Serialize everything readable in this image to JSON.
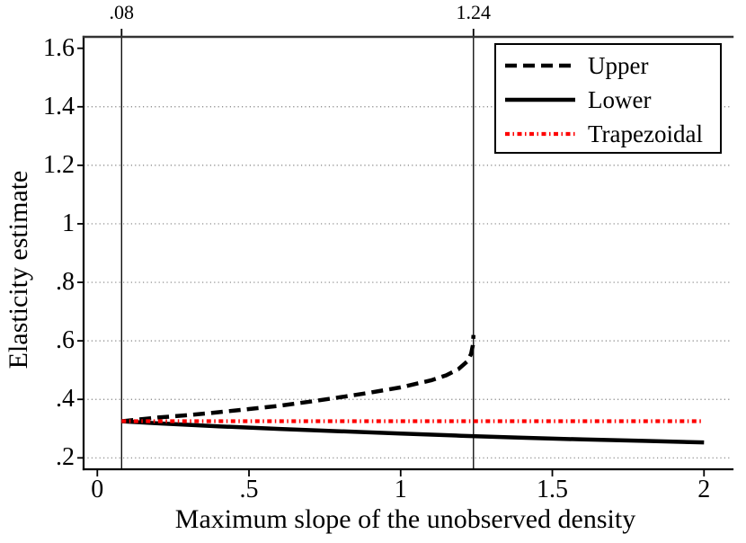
{
  "chart_data": {
    "type": "line",
    "title": "",
    "xlabel": "Maximum slope of the unobserved density",
    "ylabel": "Elasticity estimate",
    "xlim": [
      -0.0453,
      2.094
    ],
    "ylim": [
      0.161,
      1.639
    ],
    "grid": "horizontal-dotted",
    "grid_y_values": [
      0.2,
      0.4,
      0.6,
      0.8,
      1.0,
      1.2,
      1.4
    ],
    "legend_position": "top-right-inside",
    "x_ticks": [
      {
        "value": 0,
        "label": "0"
      },
      {
        "value": 0.5,
        "label": ".5"
      },
      {
        "value": 1,
        "label": "1"
      },
      {
        "value": 1.5,
        "label": "1.5"
      },
      {
        "value": 2,
        "label": "2"
      }
    ],
    "y_ticks": [
      {
        "value": 1.6,
        "label": "1.6"
      },
      {
        "value": 1.4,
        "label": "1.4"
      },
      {
        "value": 1.2,
        "label": "1.2"
      },
      {
        "value": 1.0,
        "label": "1"
      },
      {
        "value": 0.8,
        "label": ".8"
      },
      {
        "value": 0.6,
        "label": ".6"
      },
      {
        "value": 0.4,
        "label": ".4"
      },
      {
        "value": 0.2,
        "label": ".2"
      }
    ],
    "reference_lines": [
      {
        "x": 0.08,
        "label": ".08"
      },
      {
        "x": 1.24,
        "label": "1.24"
      }
    ],
    "colors": {
      "series_black": "#000000",
      "series_red": "#fe0000",
      "grid": "#808080",
      "axis": "#000000"
    },
    "series": [
      {
        "name": "Upper",
        "color": "#000000",
        "style": "dashed",
        "points": [
          [
            0.08,
            0.325
          ],
          [
            0.2,
            0.338
          ],
          [
            0.3,
            0.346
          ],
          [
            0.4,
            0.356
          ],
          [
            0.5,
            0.367
          ],
          [
            0.6,
            0.378
          ],
          [
            0.7,
            0.392
          ],
          [
            0.8,
            0.407
          ],
          [
            0.9,
            0.423
          ],
          [
            1.0,
            0.441
          ],
          [
            1.1,
            0.465
          ],
          [
            1.15,
            0.482
          ],
          [
            1.19,
            0.503
          ],
          [
            1.22,
            0.53
          ],
          [
            1.232,
            0.555
          ],
          [
            1.238,
            0.585
          ],
          [
            1.24,
            0.62
          ]
        ]
      },
      {
        "name": "Lower",
        "color": "#000000",
        "style": "solid",
        "points": [
          [
            0.08,
            0.325
          ],
          [
            0.2,
            0.318
          ],
          [
            0.4,
            0.308
          ],
          [
            0.6,
            0.299
          ],
          [
            0.8,
            0.291
          ],
          [
            1.0,
            0.283
          ],
          [
            1.2,
            0.2755
          ],
          [
            1.4,
            0.269
          ],
          [
            1.6,
            0.263
          ],
          [
            1.8,
            0.258
          ],
          [
            2.0,
            0.253
          ]
        ]
      },
      {
        "name": "Trapezoidal",
        "color": "#fe0000",
        "style": "dash-dot",
        "points": [
          [
            0.08,
            0.3255
          ],
          [
            2.0,
            0.3255
          ]
        ]
      }
    ]
  }
}
